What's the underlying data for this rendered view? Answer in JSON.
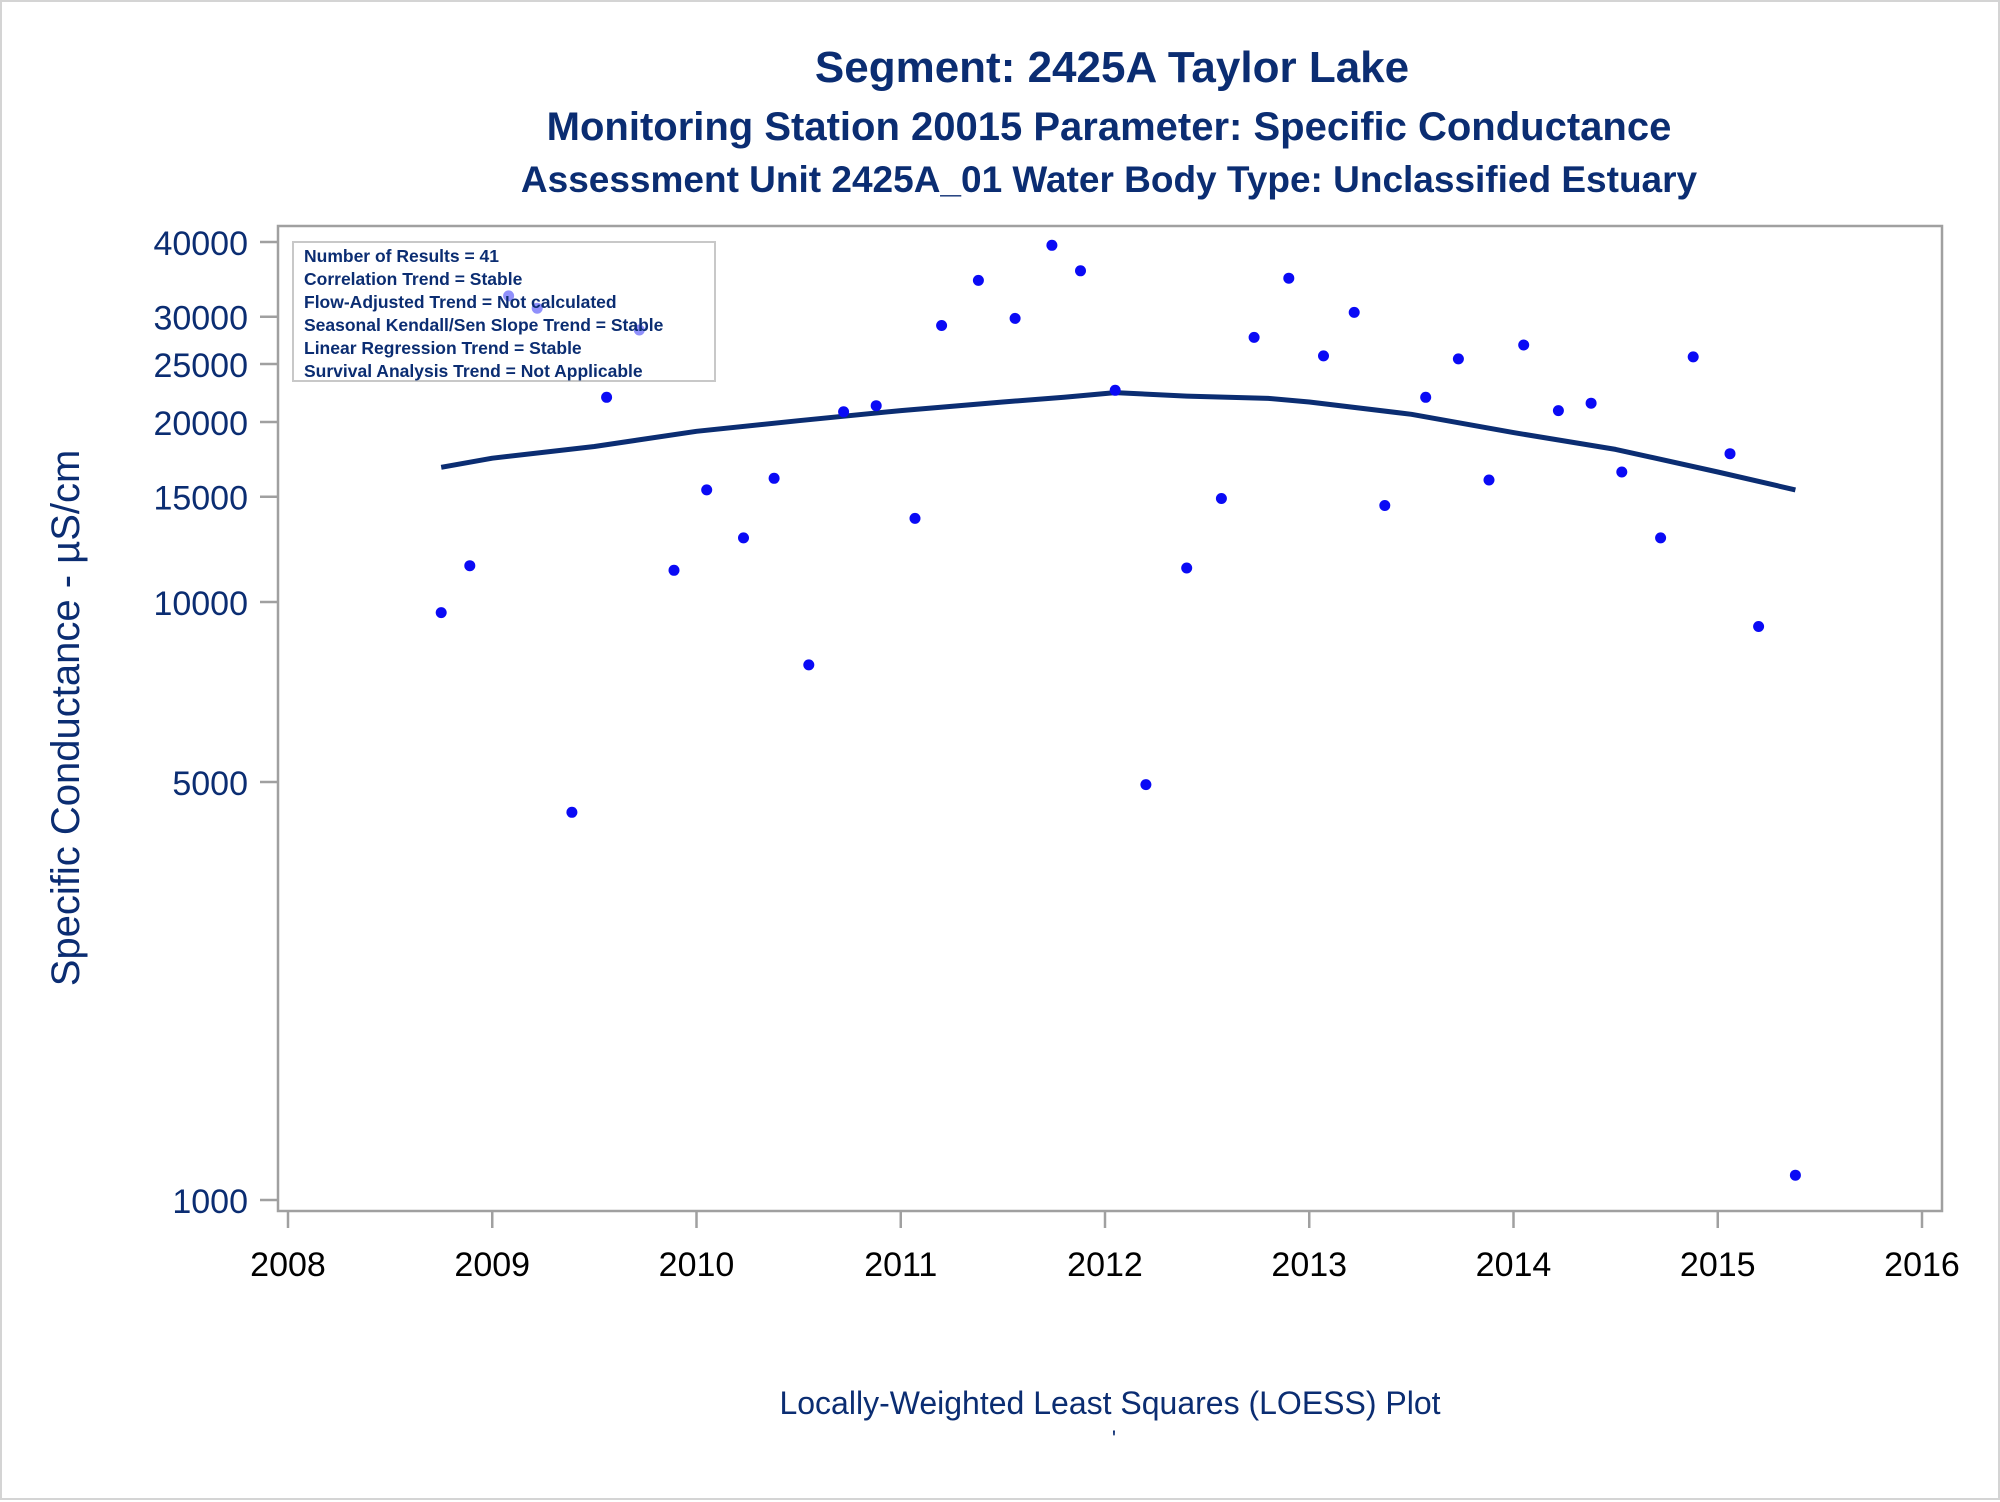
{
  "chart_data": {
    "type": "scatter",
    "title": "Segment: 2425A  Taylor Lake",
    "subtitle_1": "Monitoring Station 20015 Parameter: Specific Conductance",
    "subtitle_2": "Assessment Unit 2425A_01   Water Body Type: Unclassified Estuary",
    "ylabel": "Specific Conductance -  µS/cm",
    "xlabel": "Locally-Weighted Least Squares (LOESS) Plot",
    "footnote": "'",
    "y_scale": "log",
    "xlim": [
      2008,
      2016
    ],
    "ylim": [
      1000,
      42000
    ],
    "x_ticks": [
      "2008",
      "2009",
      "2010",
      "2011",
      "2012",
      "2013",
      "2014",
      "2015",
      "2016"
    ],
    "y_ticks": [
      "1000",
      "5000",
      "10000",
      "15000",
      "20000",
      "25000",
      "30000",
      "40000"
    ],
    "legend_placement": "top-left",
    "stats_box": [
      "Number of Results = 41",
      "Correlation Trend = Stable",
      "Flow-Adjusted Trend = Not calculated",
      "Seasonal Kendall/Sen Slope Trend = Stable",
      "Linear Regression Trend = Stable",
      "Survival Analysis Trend = Not Applicable"
    ],
    "points": [
      {
        "x": 2008.75,
        "y": 9600
      },
      {
        "x": 2008.89,
        "y": 11500
      },
      {
        "x": 2009.08,
        "y": 32500
      },
      {
        "x": 2009.22,
        "y": 31000
      },
      {
        "x": 2009.39,
        "y": 4450
      },
      {
        "x": 2009.56,
        "y": 22000
      },
      {
        "x": 2009.72,
        "y": 28500
      },
      {
        "x": 2009.89,
        "y": 11300
      },
      {
        "x": 2010.05,
        "y": 15400
      },
      {
        "x": 2010.23,
        "y": 12800
      },
      {
        "x": 2010.38,
        "y": 16100
      },
      {
        "x": 2010.55,
        "y": 7850
      },
      {
        "x": 2010.72,
        "y": 20800
      },
      {
        "x": 2010.88,
        "y": 21300
      },
      {
        "x": 2011.07,
        "y": 13800
      },
      {
        "x": 2011.2,
        "y": 29000
      },
      {
        "x": 2011.38,
        "y": 34500
      },
      {
        "x": 2011.56,
        "y": 29800
      },
      {
        "x": 2011.74,
        "y": 39500
      },
      {
        "x": 2011.88,
        "y": 35800
      },
      {
        "x": 2012.05,
        "y": 22600
      },
      {
        "x": 2012.2,
        "y": 4950
      },
      {
        "x": 2012.4,
        "y": 11400
      },
      {
        "x": 2012.57,
        "y": 14900
      },
      {
        "x": 2012.73,
        "y": 27700
      },
      {
        "x": 2012.9,
        "y": 34800
      },
      {
        "x": 2013.07,
        "y": 25800
      },
      {
        "x": 2013.22,
        "y": 30500
      },
      {
        "x": 2013.37,
        "y": 14500
      },
      {
        "x": 2013.57,
        "y": 22000
      },
      {
        "x": 2013.73,
        "y": 25500
      },
      {
        "x": 2013.88,
        "y": 16000
      },
      {
        "x": 2014.05,
        "y": 26900
      },
      {
        "x": 2014.22,
        "y": 20900
      },
      {
        "x": 2014.38,
        "y": 21500
      },
      {
        "x": 2014.53,
        "y": 16500
      },
      {
        "x": 2014.72,
        "y": 12800
      },
      {
        "x": 2014.88,
        "y": 25700
      },
      {
        "x": 2015.06,
        "y": 17700
      },
      {
        "x": 2015.2,
        "y": 9100
      },
      {
        "x": 2015.38,
        "y": 1100
      }
    ],
    "loess_curve": [
      {
        "x": 2008.75,
        "y": 16800
      },
      {
        "x": 2009.0,
        "y": 17400
      },
      {
        "x": 2009.5,
        "y": 18200
      },
      {
        "x": 2010.0,
        "y": 19300
      },
      {
        "x": 2010.5,
        "y": 20100
      },
      {
        "x": 2011.0,
        "y": 20900
      },
      {
        "x": 2011.5,
        "y": 21600
      },
      {
        "x": 2011.8,
        "y": 22000
      },
      {
        "x": 2012.05,
        "y": 22400
      },
      {
        "x": 2012.4,
        "y": 22100
      },
      {
        "x": 2012.8,
        "y": 21900
      },
      {
        "x": 2013.0,
        "y": 21600
      },
      {
        "x": 2013.5,
        "y": 20600
      },
      {
        "x": 2014.0,
        "y": 19200
      },
      {
        "x": 2014.5,
        "y": 18000
      },
      {
        "x": 2015.0,
        "y": 16500
      },
      {
        "x": 2015.38,
        "y": 15400
      }
    ],
    "colors": {
      "title": "#0b2d72",
      "points": "#0a0af5",
      "curve": "#0b2d72",
      "axis_labels": "#0b2d72",
      "frame": "#a0a0a0"
    }
  }
}
